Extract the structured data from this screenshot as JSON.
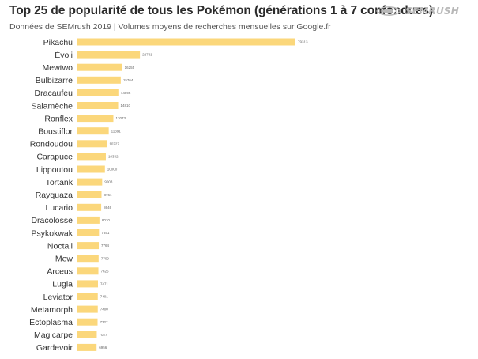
{
  "title": "Top 25 de popularité de tous les Pokémon (générations 1 à 7 confondues)",
  "subtitle": "Données de SEMrush 2019 | Volumes moyens de recherches mensuelles sur Google.fr",
  "brand": {
    "name": "SEMRUSH",
    "icon": "semrush-fireball-icon",
    "color": "#b8b8b8"
  },
  "colors": {
    "bar": "#fbd77b",
    "label": "#333333"
  },
  "chart_data": {
    "type": "bar",
    "orientation": "horizontal",
    "categories": [
      "Pikachu",
      "Évoli",
      "Mewtwo",
      "Bulbizarre",
      "Dracaufeu",
      "Salamèche",
      "Ronflex",
      "Boustiflor",
      "Rondoudou",
      "Carapuce",
      "Lippoutou",
      "Tortank",
      "Rayquaza",
      "Lucario",
      "Dracolosse",
      "Psykokwak",
      "Noctali",
      "Mew",
      "Arceus",
      "Lugia",
      "Leviator",
      "Metamorph",
      "Ectoplasma",
      "Magicarpe",
      "Gardevoir"
    ],
    "values": [
      79313,
      22731,
      16255,
      15764,
      14895,
      14810,
      13073,
      11391,
      10727,
      10332,
      10000,
      9003,
      8761,
      8646,
      8010,
      7851,
      7764,
      7709,
      7626,
      7471,
      7401,
      7400,
      7327,
      7027,
      6956
    ],
    "xlim": [
      0,
      79313
    ],
    "grid": false,
    "legend": "none"
  }
}
